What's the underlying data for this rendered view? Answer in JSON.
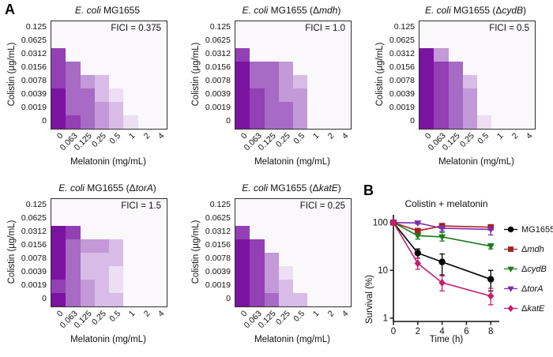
{
  "panel_labels": {
    "a": "A",
    "b": "B"
  },
  "heatmap_palette": [
    "#faf8fb",
    "#ecdff2",
    "#d8bce7",
    "#c399d7",
    "#a76ac5",
    "#9340b4",
    "#7b13a1"
  ],
  "chart_data": [
    {
      "type": "heatmap",
      "title_segments": [
        {
          "t": "E. coli",
          "i": true
        },
        {
          "t": " MG1655",
          "i": false
        }
      ],
      "annotation": "FICI = 0.375",
      "xlabel": "Melatonin (mg/mL)",
      "ylabel": "Colistin (µg/mL)",
      "x_ticks": [
        "0",
        "0.063",
        "0.125",
        "0.25",
        "0.5",
        "1",
        "2",
        "4"
      ],
      "y_ticks": [
        "0.125",
        "0.0625",
        "0.0312",
        "0.0156",
        "0.0078",
        "0.0039",
        "0.0019",
        "0"
      ],
      "grid_levels": [
        [
          0,
          0,
          0,
          0,
          0,
          0,
          0,
          0
        ],
        [
          0,
          0,
          0,
          0,
          0,
          0,
          0,
          0
        ],
        [
          5,
          0,
          0,
          0,
          0,
          0,
          0,
          0
        ],
        [
          5,
          4,
          0,
          0,
          0,
          0,
          0,
          0
        ],
        [
          5,
          4,
          3,
          2,
          0,
          0,
          0,
          0
        ],
        [
          6,
          4,
          4,
          2,
          1,
          0,
          0,
          0
        ],
        [
          6,
          4,
          4,
          3,
          2,
          0,
          0,
          0
        ],
        [
          6,
          5,
          4,
          3,
          2,
          1,
          0,
          0
        ]
      ]
    },
    {
      "type": "heatmap",
      "title_segments": [
        {
          "t": "E. coli",
          "i": true
        },
        {
          "t": " MG1655 (Δ",
          "i": false
        },
        {
          "t": "mdh",
          "i": true
        },
        {
          "t": ")",
          "i": false
        }
      ],
      "annotation": "FICI = 1.0",
      "xlabel": "Melatonin (mg/mL)",
      "ylabel": "Colistin (µg/mL)",
      "x_ticks": [
        "0",
        "0.063",
        "0.125",
        "0.25",
        "0.5",
        "1",
        "2",
        "4"
      ],
      "y_ticks": [
        "0.125",
        "0.0625",
        "0.0312",
        "0.0156",
        "0.0078",
        "0.0039",
        "0.0019",
        "0"
      ],
      "grid_levels": [
        [
          0,
          0,
          0,
          0,
          0,
          0,
          0,
          0
        ],
        [
          0,
          0,
          0,
          0,
          0,
          0,
          0,
          0
        ],
        [
          5,
          0,
          0,
          0,
          0,
          0,
          0,
          0
        ],
        [
          6,
          4,
          4,
          3,
          0,
          0,
          0,
          0
        ],
        [
          6,
          4,
          4,
          3,
          2,
          0,
          0,
          0
        ],
        [
          6,
          5,
          4,
          3,
          3,
          0,
          0,
          0
        ],
        [
          6,
          5,
          4,
          4,
          3,
          0,
          0,
          0
        ],
        [
          6,
          5,
          4,
          4,
          3,
          0,
          0,
          0
        ]
      ]
    },
    {
      "type": "heatmap",
      "title_segments": [
        {
          "t": "E. coli",
          "i": true
        },
        {
          "t": " MG1655 (Δ",
          "i": false
        },
        {
          "t": "cydB",
          "i": true
        },
        {
          "t": ")",
          "i": false
        }
      ],
      "annotation": "FICI = 0.5",
      "xlabel": "Melatonin (mg/mL)",
      "ylabel": "Colistin (µg/mL)",
      "x_ticks": [
        "0",
        "0.063",
        "0.125",
        "0.25",
        "0.5",
        "1",
        "2",
        "4"
      ],
      "y_ticks": [
        "0.125",
        "0.0625",
        "0.0312",
        "0.0156",
        "0.0078",
        "0.0039",
        "0.0019",
        "0"
      ],
      "grid_levels": [
        [
          0,
          0,
          0,
          0,
          0,
          0,
          0,
          0
        ],
        [
          0,
          0,
          0,
          0,
          0,
          0,
          0,
          0
        ],
        [
          6,
          3,
          0,
          0,
          0,
          0,
          0,
          0
        ],
        [
          6,
          5,
          4,
          0,
          0,
          0,
          0,
          0
        ],
        [
          6,
          5,
          4,
          2,
          0,
          0,
          0,
          0
        ],
        [
          6,
          5,
          4,
          3,
          0,
          0,
          0,
          0
        ],
        [
          6,
          5,
          4,
          3,
          0,
          0,
          0,
          0
        ],
        [
          6,
          5,
          4,
          3,
          1,
          0,
          0,
          0
        ]
      ]
    },
    {
      "type": "heatmap",
      "title_segments": [
        {
          "t": "E. coli",
          "i": true
        },
        {
          "t": " MG1655 (Δ",
          "i": false
        },
        {
          "t": "torA",
          "i": true
        },
        {
          "t": ")",
          "i": false
        }
      ],
      "annotation": "FICI = 1.5",
      "xlabel": "Melatonin (mg/mL)",
      "ylabel": "Colistin (µg/mL)",
      "x_ticks": [
        "0",
        "0.063",
        "0.125",
        "0.25",
        "0.5",
        "1",
        "2",
        "4"
      ],
      "y_ticks": [
        "0.125",
        "0.0625",
        "0.0312",
        "0.0156",
        "0.0078",
        "0.0039",
        "0.0019",
        "0"
      ],
      "grid_levels": [
        [
          0,
          0,
          0,
          0,
          0,
          0,
          0,
          0
        ],
        [
          0,
          0,
          0,
          0,
          0,
          0,
          0,
          0
        ],
        [
          6,
          5,
          0,
          0,
          0,
          0,
          0,
          0
        ],
        [
          6,
          4,
          3,
          3,
          2,
          0,
          0,
          0
        ],
        [
          6,
          4,
          2,
          2,
          2,
          0,
          0,
          0
        ],
        [
          6,
          4,
          2,
          2,
          1,
          0,
          0,
          0
        ],
        [
          5,
          4,
          3,
          2,
          1,
          0,
          0,
          0
        ],
        [
          6,
          4,
          3,
          2,
          2,
          0,
          0,
          0
        ]
      ]
    },
    {
      "type": "heatmap",
      "title_segments": [
        {
          "t": "E. coli",
          "i": true
        },
        {
          "t": " MG1655 (Δ",
          "i": false
        },
        {
          "t": "katE",
          "i": true
        },
        {
          "t": ")",
          "i": false
        }
      ],
      "annotation": "FICI = 0.25",
      "xlabel": "Melatonin (mg/mL)",
      "ylabel": "Colistin (µg/mL)",
      "x_ticks": [
        "0",
        "0.063",
        "0.125",
        "0.25",
        "0.5",
        "1",
        "2",
        "4"
      ],
      "y_ticks": [
        "0.125",
        "0.0625",
        "0.0312",
        "0.0156",
        "0.0078",
        "0.0039",
        "0.0019",
        "0"
      ],
      "grid_levels": [
        [
          0,
          0,
          0,
          0,
          0,
          0,
          0,
          0
        ],
        [
          0,
          0,
          0,
          0,
          0,
          0,
          0,
          0
        ],
        [
          5,
          0,
          0,
          0,
          0,
          0,
          0,
          0
        ],
        [
          6,
          5,
          0,
          0,
          0,
          0,
          0,
          0
        ],
        [
          6,
          5,
          3,
          0,
          0,
          0,
          0,
          0
        ],
        [
          6,
          5,
          3,
          1,
          0,
          0,
          0,
          0
        ],
        [
          6,
          5,
          3,
          2,
          0,
          0,
          0,
          0
        ],
        [
          6,
          5,
          4,
          2,
          2,
          0,
          0,
          0
        ]
      ]
    },
    {
      "type": "line",
      "title": "Colistin + melatonin",
      "xlabel": "Time (h)",
      "ylabel": "Survival (%)",
      "y_scale": "log",
      "x": [
        0,
        2,
        4,
        8
      ],
      "x_ticks": [
        0,
        2,
        4,
        6,
        8
      ],
      "y_ticks": [
        1,
        10,
        100
      ],
      "xlim": [
        0,
        8.7
      ],
      "ylim": [
        0.85,
        145
      ],
      "legend_position": "right",
      "series": [
        {
          "name": "MG1655",
          "name_segments": [
            {
              "t": "MG1655",
              "i": false
            }
          ],
          "color": "#000000",
          "marker": "circle",
          "values": [
            100,
            23,
            15,
            6.5
          ],
          "err": [
            [
              0,
              0
            ],
            [
              5,
              5
            ],
            [
              7,
              7
            ],
            [
              2.8,
              3.5
            ]
          ]
        },
        {
          "name": "Δmdh",
          "name_segments": [
            {
              "t": "Δ",
              "i": false
            },
            {
              "t": "mdh",
              "i": true
            }
          ],
          "color": "#a61e22",
          "marker": "square",
          "values": [
            100,
            67,
            85,
            80
          ],
          "err": [
            [
              0,
              0
            ],
            [
              10,
              8
            ],
            [
              8,
              5
            ],
            [
              10,
              8
            ]
          ]
        },
        {
          "name": "ΔcydB",
          "name_segments": [
            {
              "t": "Δ",
              "i": false
            },
            {
              "t": "cydB",
              "i": true
            }
          ],
          "color": "#1e7b1e",
          "marker": "triangle-down",
          "values": [
            100,
            53,
            50,
            32
          ],
          "err": [
            [
              0,
              0
            ],
            [
              8,
              12
            ],
            [
              9,
              12
            ],
            [
              4,
              4
            ]
          ]
        },
        {
          "name": "ΔtorA",
          "name_segments": [
            {
              "t": "Δ",
              "i": false
            },
            {
              "t": "torA",
              "i": true
            }
          ],
          "color": "#7d2daf",
          "marker": "triangle-down",
          "values": [
            100,
            98,
            76,
            72
          ],
          "err": [
            [
              0,
              0
            ],
            [
              5,
              8
            ],
            [
              10,
              12
            ],
            [
              17,
              18
            ]
          ]
        },
        {
          "name": "ΔkatE",
          "name_segments": [
            {
              "t": "Δ",
              "i": false
            },
            {
              "t": "katE",
              "i": true
            }
          ],
          "color": "#c81e6e",
          "marker": "diamond",
          "values": [
            100,
            14,
            5.5,
            2.9
          ],
          "err": [
            [
              0,
              0
            ],
            [
              3.5,
              4
            ],
            [
              1.8,
              2.2
            ],
            [
              1.0,
              1.3
            ]
          ]
        }
      ]
    }
  ]
}
